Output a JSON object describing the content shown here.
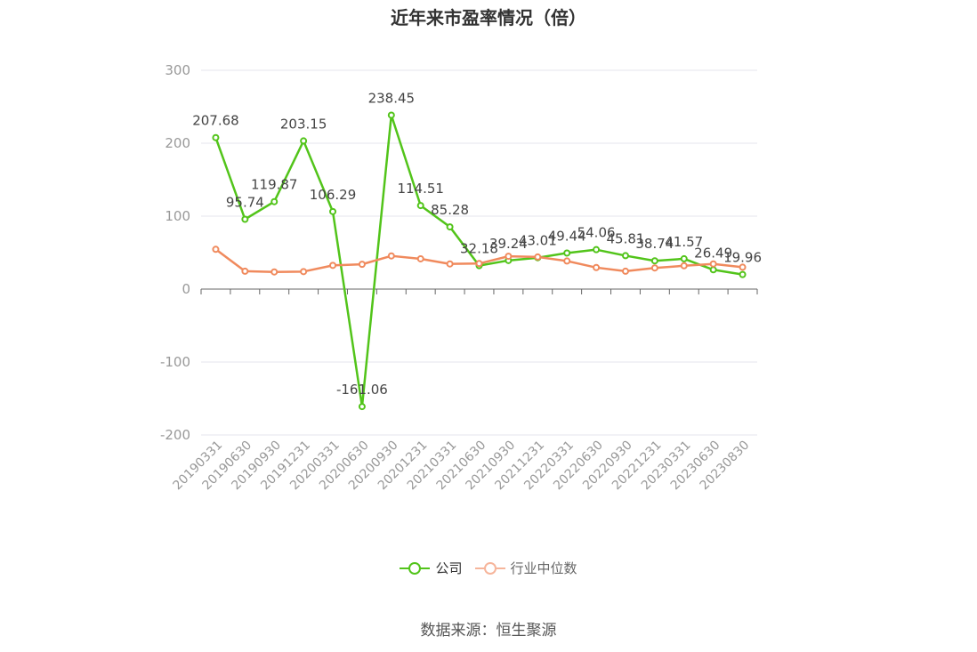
{
  "title": "近年来市盈率情况（倍）",
  "source": "数据来源：恒生聚源",
  "colors": {
    "company": "#52c41a",
    "industry": "#f08a5d",
    "industry_legend": "#f6b59b",
    "grid": "#e6e6ee",
    "axis_text": "#999999",
    "label_text": "#444444"
  },
  "chart_data": {
    "type": "line",
    "title": "近年来市盈率情况（倍）",
    "categories": [
      "20190331",
      "20190630",
      "20190930",
      "20191231",
      "20200331",
      "20200630",
      "20200930",
      "20201231",
      "20210331",
      "20210630",
      "20210930",
      "20211231",
      "20220331",
      "20220630",
      "20220930",
      "20221231",
      "20230331",
      "20230630",
      "20230830"
    ],
    "ylim": [
      -200,
      300
    ],
    "yticks": [
      300,
      200,
      100,
      0,
      -100,
      -200
    ],
    "grid": true,
    "legend_position": "bottom",
    "series": [
      {
        "name": "公司",
        "values": [
          207.68,
          95.74,
          119.87,
          203.15,
          106.29,
          -161.06,
          238.45,
          114.51,
          85.28,
          32.18,
          39.24,
          43.01,
          49.44,
          54.06,
          45.81,
          38.74,
          41.57,
          26.49,
          19.96
        ],
        "labels": [
          "207.68",
          "95.74",
          "119.87",
          "203.15",
          "106.29",
          "-161.06",
          "238.45",
          "114.51",
          "85.28",
          "32.18",
          "39.24",
          "43.01",
          "49.44",
          "54.06",
          "45.81",
          "38.74",
          "41.57",
          "26.49",
          "19.96"
        ]
      },
      {
        "name": "行业中位数",
        "values": [
          54.5,
          24.5,
          23.5,
          24,
          32.5,
          34,
          45.5,
          41.5,
          34.5,
          35,
          45,
          44,
          38.5,
          29.5,
          24.5,
          29,
          32,
          34.5,
          30
        ]
      }
    ]
  },
  "legend": [
    {
      "label": "公司"
    },
    {
      "label": "行业中位数"
    }
  ]
}
